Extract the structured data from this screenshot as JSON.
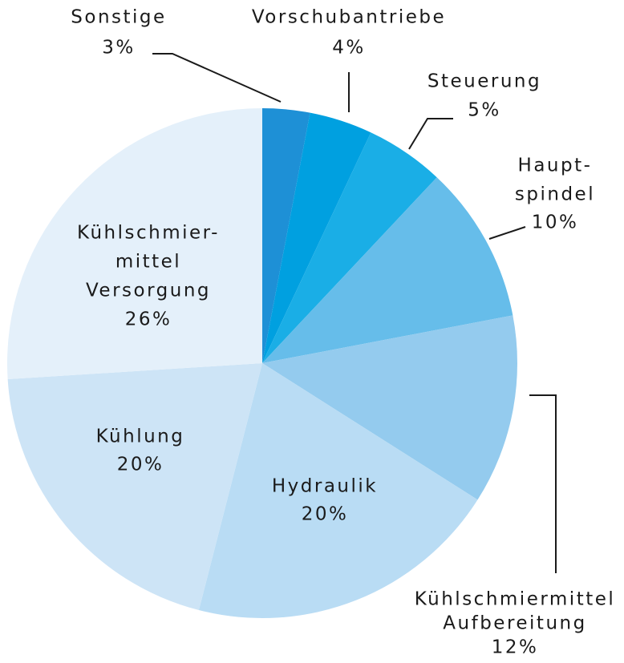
{
  "chart_data": {
    "type": "pie",
    "categories": [
      [
        "Sonstige"
      ],
      [
        "Vorschubantriebe"
      ],
      [
        "Steuerung"
      ],
      [
        "Haupt-",
        "spindel"
      ],
      [
        "Kühlschmiermittel",
        "Aufbereitung"
      ],
      [
        "Hydraulik"
      ],
      [
        "Kühlung"
      ],
      [
        "Kühlschmier-",
        "mittel",
        "Versorgung"
      ]
    ],
    "values": [
      3,
      4,
      5,
      10,
      12,
      20,
      20,
      26
    ],
    "value_labels": [
      "3%",
      "4%",
      "5%",
      "10%",
      "12%",
      "20%",
      "20%",
      "26%"
    ],
    "colors": [
      "#1e90d6",
      "#00a0e0",
      "#1aaee6",
      "#66bdea",
      "#94cbee",
      "#b9dcf4",
      "#cde4f6",
      "#e4f0fa"
    ]
  }
}
